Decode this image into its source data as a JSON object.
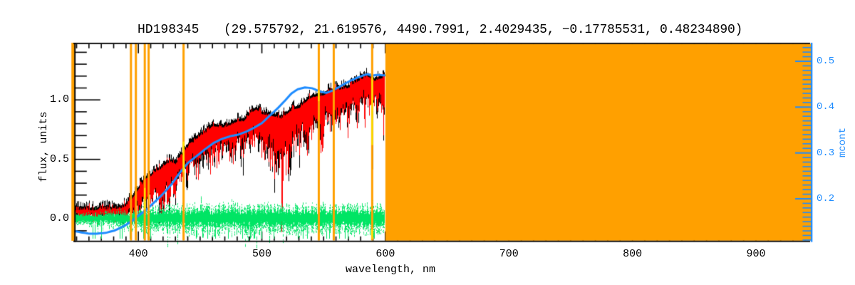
{
  "header": {
    "star": "HD198345",
    "params": "(29.575792, 21.619576, 4490.7991, 2.4029435, −0.17785531, 0.48234890)"
  },
  "chart_data": {
    "type": "line",
    "title": "HD198345 (29.575792, 21.619576, 4490.7991, 2.4029435, −0.17785531, 0.48234890)",
    "xlabel": "wavelength, nm",
    "ylabel": "flux, units",
    "y2label": "mcont",
    "x_range": [
      347.4,
      945.0
    ],
    "flux_range": [
      -0.185,
      1.48
    ],
    "mcont_range": [
      0.108,
      0.54
    ],
    "x_tick_values": [
      400,
      500,
      600,
      700,
      800,
      900
    ],
    "x_tick_labels": [
      "400",
      "500",
      "600",
      "700",
      "800",
      "900"
    ],
    "x_minor_step_nm": 10,
    "flux_tick_values": [
      0.0,
      0.5,
      1.0
    ],
    "flux_tick_labels": [
      "0.0",
      "0.5",
      "1.0"
    ],
    "flux_minor_step": 0.1,
    "mcont_tick_values": [
      0.2,
      0.3,
      0.4,
      0.5
    ],
    "mcont_tick_labels": [
      "0.2",
      "0.3",
      "0.4",
      "0.5"
    ],
    "mcont_minor_step": 0.01,
    "grid": false,
    "legend": false,
    "masked_block_nm": [
      600,
      945.0
    ],
    "masked_lines_nm": [
      346.8,
      394.0,
      398.0,
      405.2,
      408.3,
      436.6,
      546.1,
      558.2,
      589.3
    ],
    "yellow_marks": [
      {
        "nm": 405.2,
        "flux": [
          0.08,
          0.26
        ]
      },
      {
        "nm": 436.6,
        "flux": [
          0.39,
          0.65
        ]
      },
      {
        "nm": 546.1,
        "flux": [
          0.99,
          1.08
        ]
      },
      {
        "nm": 589.3,
        "flux": [
          0.62,
          1.19
        ]
      },
      {
        "nm": 589.3,
        "flux": [
          -0.17,
          -0.09
        ]
      }
    ],
    "noise_seed": 987123,
    "colors": {
      "observed": "#000000",
      "template": "#FF0000",
      "residuals": "#00E565",
      "mcont": "#1E8CFF",
      "masked": "#FFA000",
      "marker": "#FFEB00",
      "frame": "#000000"
    },
    "series": [
      {
        "name": "observed_spectrum",
        "style": "noisy_line",
        "color_key": "observed",
        "continuum_flux": [
          [
            347,
            0.07
          ],
          [
            356,
            0.08
          ],
          [
            363,
            0.07
          ],
          [
            371,
            0.08
          ],
          [
            379,
            0.08
          ],
          [
            386,
            0.09
          ],
          [
            390,
            0.11
          ],
          [
            394,
            0.16
          ],
          [
            398,
            0.22
          ],
          [
            402,
            0.28
          ],
          [
            406,
            0.34
          ],
          [
            410,
            0.36
          ],
          [
            414,
            0.4
          ],
          [
            418,
            0.42
          ],
          [
            422,
            0.46
          ],
          [
            426,
            0.48
          ],
          [
            430,
            0.46
          ],
          [
            434,
            0.52
          ],
          [
            438,
            0.58
          ],
          [
            442,
            0.62
          ],
          [
            446,
            0.66
          ],
          [
            450,
            0.7
          ],
          [
            455,
            0.73
          ],
          [
            460,
            0.78
          ],
          [
            465,
            0.77
          ],
          [
            470,
            0.77
          ],
          [
            475,
            0.79
          ],
          [
            480,
            0.82
          ],
          [
            485,
            0.82
          ],
          [
            490,
            0.88
          ],
          [
            495,
            0.92
          ],
          [
            500,
            0.88
          ],
          [
            505,
            0.87
          ],
          [
            510,
            0.86
          ],
          [
            515,
            0.84
          ],
          [
            520,
            0.88
          ],
          [
            525,
            0.92
          ],
          [
            530,
            0.93
          ],
          [
            535,
            0.98
          ],
          [
            540,
            1.02
          ],
          [
            545,
            1.03
          ],
          [
            550,
            1.04
          ],
          [
            555,
            1.07
          ],
          [
            560,
            1.08
          ],
          [
            565,
            1.09
          ],
          [
            570,
            1.1
          ],
          [
            575,
            1.14
          ],
          [
            580,
            1.17
          ],
          [
            585,
            1.2
          ],
          [
            588,
            1.18
          ],
          [
            591,
            1.16
          ],
          [
            596,
            1.18
          ],
          [
            600,
            1.19
          ]
        ],
        "absorption_depth_flux": [
          [
            347,
            0.07
          ],
          [
            380,
            0.09
          ],
          [
            395,
            0.14
          ],
          [
            405,
            0.22
          ],
          [
            415,
            0.25
          ],
          [
            425,
            0.26
          ],
          [
            435,
            0.26
          ],
          [
            445,
            0.26
          ],
          [
            455,
            0.26
          ],
          [
            465,
            0.24
          ],
          [
            475,
            0.24
          ],
          [
            485,
            0.26
          ],
          [
            495,
            0.28
          ],
          [
            505,
            0.3
          ],
          [
            512,
            0.34
          ],
          [
            517,
            0.46
          ],
          [
            522,
            0.34
          ],
          [
            530,
            0.28
          ],
          [
            540,
            0.28
          ],
          [
            550,
            0.29
          ],
          [
            560,
            0.31
          ],
          [
            570,
            0.29
          ],
          [
            580,
            0.27
          ],
          [
            590,
            0.26
          ],
          [
            600,
            0.26
          ]
        ],
        "na_d_line": {
          "nm": 589.3,
          "core_flux": 0.37
        }
      },
      {
        "name": "template_spectrum",
        "style": "noisy_overlay",
        "color_key": "template"
      },
      {
        "name": "residuals",
        "style": "speckle_band",
        "color_key": "residuals",
        "center_flux": 0.0,
        "half_width_flux": [
          [
            347,
            0.05
          ],
          [
            370,
            0.06
          ],
          [
            390,
            0.08
          ],
          [
            410,
            0.11
          ],
          [
            440,
            0.12
          ],
          [
            480,
            0.13
          ],
          [
            520,
            0.13
          ],
          [
            560,
            0.12
          ],
          [
            600,
            0.12
          ]
        ]
      },
      {
        "name": "mcont_continuum_ratio",
        "style": "smooth_line",
        "color_key": "mcont",
        "axis": "right",
        "points": [
          [
            347.5,
            0.13
          ],
          [
            353,
            0.127
          ],
          [
            360,
            0.124
          ],
          [
            367,
            0.124
          ],
          [
            374,
            0.126
          ],
          [
            381,
            0.131
          ],
          [
            388,
            0.14
          ],
          [
            395,
            0.152
          ],
          [
            400,
            0.163
          ],
          [
            406,
            0.175
          ],
          [
            412,
            0.19
          ],
          [
            419,
            0.208
          ],
          [
            427,
            0.232
          ],
          [
            433,
            0.255
          ],
          [
            440,
            0.278
          ],
          [
            448,
            0.295
          ],
          [
            455,
            0.31
          ],
          [
            461,
            0.322
          ],
          [
            468,
            0.331
          ],
          [
            475,
            0.337
          ],
          [
            481,
            0.34
          ],
          [
            487,
            0.346
          ],
          [
            493,
            0.354
          ],
          [
            500,
            0.365
          ],
          [
            507,
            0.383
          ],
          [
            513,
            0.398
          ],
          [
            519,
            0.415
          ],
          [
            524,
            0.43
          ],
          [
            529,
            0.439
          ],
          [
            535,
            0.443
          ],
          [
            541,
            0.441
          ],
          [
            547,
            0.434
          ],
          [
            552,
            0.431
          ],
          [
            557,
            0.436
          ],
          [
            562,
            0.443
          ],
          [
            567,
            0.451
          ],
          [
            572,
            0.458
          ],
          [
            578,
            0.465
          ],
          [
            583,
            0.47
          ],
          [
            586,
            0.472
          ],
          [
            589,
            0.468
          ],
          [
            592,
            0.47
          ],
          [
            596,
            0.47
          ],
          [
            600,
            0.469
          ]
        ]
      }
    ]
  }
}
